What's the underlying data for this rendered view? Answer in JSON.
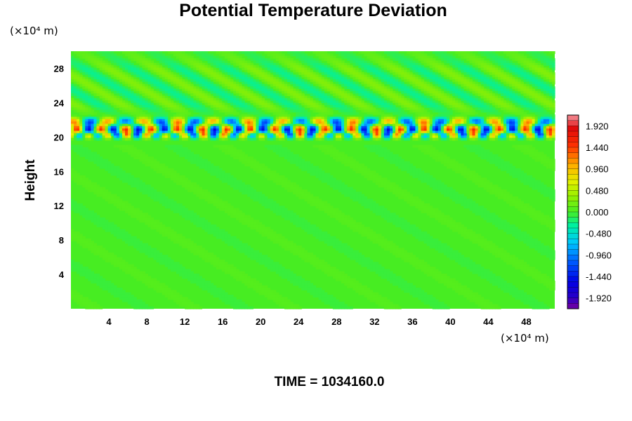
{
  "chart_data": {
    "type": "heatmap",
    "title": "Potential Temperature Deviation",
    "ylabel": "Height",
    "x_unit": "(×10⁴ m)",
    "y_unit": "(×10⁴ m)",
    "xlim": [
      0,
      51
    ],
    "ylim": [
      0,
      30
    ],
    "x_ticks": [
      4,
      8,
      12,
      16,
      20,
      24,
      28,
      32,
      36,
      40,
      44,
      48
    ],
    "y_ticks": [
      4,
      8,
      12,
      16,
      20,
      24,
      28
    ],
    "colorbar": {
      "range": [
        -2.16,
        2.16
      ],
      "labels": [
        "1.920",
        "1.440",
        "0.960",
        "0.480",
        "0.000",
        "-0.480",
        "-0.960",
        "-1.440",
        "-1.920"
      ],
      "label_values": [
        1.92,
        1.44,
        0.96,
        0.48,
        0.0,
        -0.48,
        -0.96,
        -1.44,
        -1.92
      ]
    },
    "field_summary": {
      "background_value": 0.0,
      "strong_layer_height_range": [
        19.8,
        22.5
      ],
      "wave_layer_height_range": [
        22.5,
        30
      ],
      "min_value": -1.92,
      "max_value": 1.92
    },
    "footer": "TIME = 1034160.0"
  }
}
